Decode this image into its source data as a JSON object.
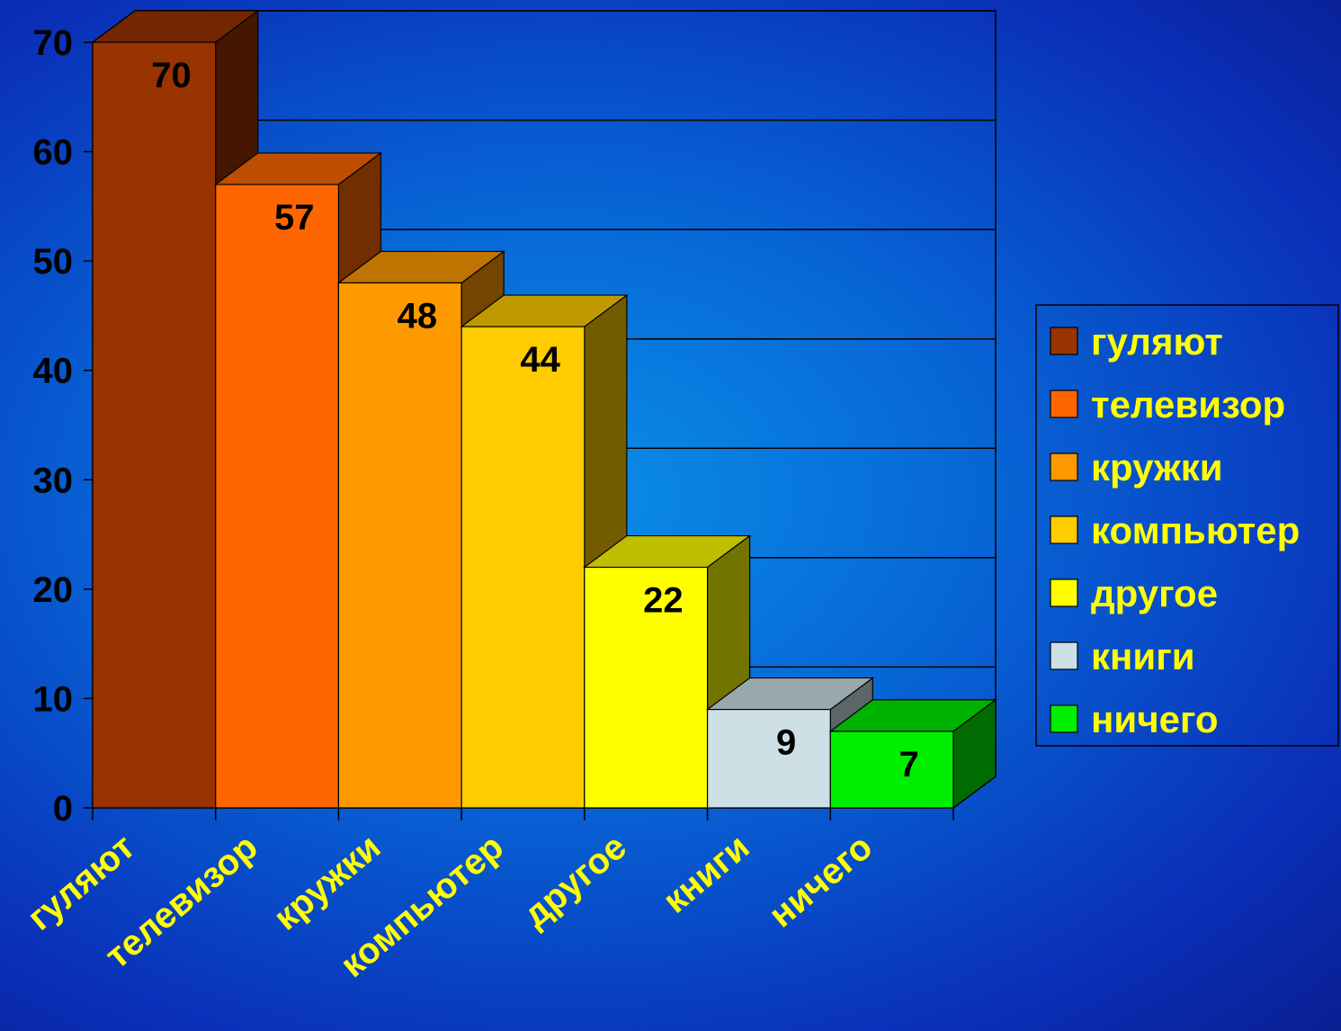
{
  "chart_data": {
    "type": "bar",
    "categories": [
      "гуляют",
      "телевизор",
      "кружки",
      "компьютер",
      "другое",
      "книги",
      "ничего"
    ],
    "values": [
      70,
      57,
      48,
      44,
      22,
      9,
      7
    ],
    "colors": [
      "#993300",
      "#ff6600",
      "#ff9900",
      "#ffcc00",
      "#ffff00",
      "#cce0e6",
      "#00ee00"
    ],
    "ylim": [
      0,
      70
    ],
    "yticks": [
      0,
      10,
      20,
      30,
      40,
      50,
      60,
      70
    ],
    "grid": true,
    "legend_position": "right",
    "three_d": true,
    "title": "",
    "xlabel": "",
    "ylabel": ""
  },
  "colors": {
    "background": "#0a5fd0",
    "x_label_color": "#ffff00",
    "legend_text_color": "#ffff00",
    "gridline_color": "#000000"
  }
}
